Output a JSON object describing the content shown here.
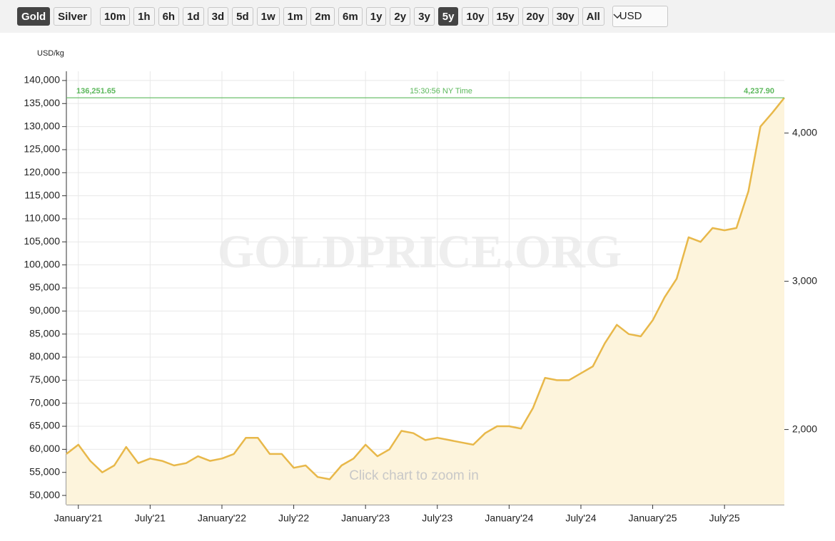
{
  "toolbar": {
    "buttons": [
      "Gold",
      "Silver",
      "10m",
      "1h",
      "6h",
      "1d",
      "3d",
      "5d",
      "1w",
      "1m",
      "2m",
      "6m",
      "1y",
      "2y",
      "3y",
      "5y",
      "10y",
      "15y",
      "20y",
      "30y",
      "All"
    ],
    "active": [
      0,
      15
    ],
    "currency": "USD"
  },
  "chart_data": {
    "type": "area",
    "y_label": "USD/kg",
    "watermark": "GOLDPRICE.ORG",
    "annotation": "Click chart to zoom in",
    "price_line": {
      "kg": {
        "value": 136251.65,
        "label": "136,251.65"
      },
      "oz": {
        "value": 4237.9,
        "label": "4,237.90"
      },
      "time": "15:30:56 NY Time",
      "color": "#5cb85c"
    },
    "x": [
      "2020-12",
      "2021-01",
      "2021-02",
      "2021-03",
      "2021-04",
      "2021-05",
      "2021-06",
      "2021-07",
      "2021-08",
      "2021-09",
      "2021-10",
      "2021-11",
      "2021-12",
      "2022-01",
      "2022-02",
      "2022-03",
      "2022-04",
      "2022-05",
      "2022-06",
      "2022-07",
      "2022-08",
      "2022-09",
      "2022-10",
      "2022-11",
      "2022-12",
      "2023-01",
      "2023-02",
      "2023-03",
      "2023-04",
      "2023-05",
      "2023-06",
      "2023-07",
      "2023-08",
      "2023-09",
      "2023-10",
      "2023-11",
      "2023-12",
      "2024-01",
      "2024-02",
      "2024-03",
      "2024-04",
      "2024-05",
      "2024-06",
      "2024-07",
      "2024-08",
      "2024-09",
      "2024-10",
      "2024-11",
      "2024-12",
      "2025-01",
      "2025-02",
      "2025-03",
      "2025-04",
      "2025-05",
      "2025-06",
      "2025-07",
      "2025-08",
      "2025-09",
      "2025-10",
      "2025-11",
      "2025-12"
    ],
    "series": [
      {
        "name": "Gold",
        "color": "#e8b84a",
        "fill": "#fdf4dc",
        "values": [
          59000,
          61000,
          57500,
          55000,
          56500,
          60500,
          57000,
          58000,
          57500,
          56500,
          57000,
          58500,
          57500,
          58000,
          59000,
          62500,
          62500,
          59000,
          59000,
          56000,
          56500,
          54000,
          53500,
          56500,
          58000,
          61000,
          58500,
          60000,
          64000,
          63500,
          62000,
          62500,
          62000,
          61500,
          61000,
          63500,
          65000,
          65000,
          64500,
          69000,
          75500,
          75000,
          75000,
          76500,
          78000,
          83000,
          87000,
          85000,
          84500,
          88000,
          93000,
          97000,
          106000,
          105000,
          108000,
          107500,
          108000,
          116000,
          130000,
          133000,
          136251.65
        ]
      }
    ],
    "xlim": [
      "2020-12",
      "2025-12"
    ],
    "xticks": [
      {
        "value": "2021-01",
        "label": "January'21"
      },
      {
        "value": "2021-07",
        "label": "July'21"
      },
      {
        "value": "2022-01",
        "label": "January'22"
      },
      {
        "value": "2022-07",
        "label": "July'22"
      },
      {
        "value": "2023-01",
        "label": "January'23"
      },
      {
        "value": "2023-07",
        "label": "July'23"
      },
      {
        "value": "2024-01",
        "label": "January'24"
      },
      {
        "value": "2024-07",
        "label": "July'24"
      },
      {
        "value": "2025-01",
        "label": "January'25"
      },
      {
        "value": "2025-07",
        "label": "July'25"
      }
    ],
    "ylim": [
      48000,
      142000
    ],
    "yticks": [
      {
        "value": 50000,
        "label": "50,000"
      },
      {
        "value": 55000,
        "label": "55,000"
      },
      {
        "value": 60000,
        "label": "60,000"
      },
      {
        "value": 65000,
        "label": "65,000"
      },
      {
        "value": 70000,
        "label": "70,000"
      },
      {
        "value": 75000,
        "label": "75,000"
      },
      {
        "value": 80000,
        "label": "80,000"
      },
      {
        "value": 85000,
        "label": "85,000"
      },
      {
        "value": 90000,
        "label": "90,000"
      },
      {
        "value": 95000,
        "label": "95,000"
      },
      {
        "value": 100000,
        "label": "100,000"
      },
      {
        "value": 105000,
        "label": "105,000"
      },
      {
        "value": 110000,
        "label": "110,000"
      },
      {
        "value": 115000,
        "label": "115,000"
      },
      {
        "value": 120000,
        "label": "120,000"
      },
      {
        "value": 125000,
        "label": "125,000"
      },
      {
        "value": 130000,
        "label": "130,000"
      },
      {
        "value": 135000,
        "label": "135,000"
      },
      {
        "value": 140000,
        "label": "140,000"
      }
    ],
    "y2lim": [
      1493,
      4417
    ],
    "y2ticks": [
      {
        "value": 2000,
        "label": "2,000"
      },
      {
        "value": 3000,
        "label": "3,000"
      },
      {
        "value": 4000,
        "label": "4,000"
      }
    ],
    "grid": true
  }
}
